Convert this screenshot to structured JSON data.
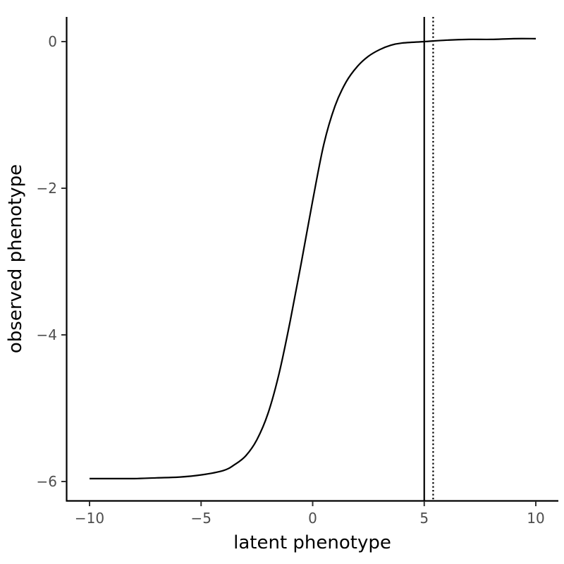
{
  "chart_data": {
    "type": "line",
    "title": "",
    "xlabel": "latent phenotype",
    "ylabel": "observed phenotype",
    "xlim": [
      -11,
      11
    ],
    "ylim": [
      -6.25,
      0.35
    ],
    "xticks": [
      -10,
      -5,
      0,
      5,
      10
    ],
    "xtick_labels": [
      "−10",
      "−5",
      "0",
      "5",
      "10"
    ],
    "yticks": [
      -6,
      -4,
      -2,
      0
    ],
    "ytick_labels": [
      "−6",
      "−4",
      "−2",
      "0"
    ],
    "grid": false,
    "series": [
      {
        "style": "solid",
        "color": "#000000",
        "points": [
          [
            -10,
            -5.96
          ],
          [
            -9,
            -5.96
          ],
          [
            -8,
            -5.96
          ],
          [
            -7,
            -5.95
          ],
          [
            -6,
            -5.94
          ],
          [
            -5,
            -5.91
          ],
          [
            -4,
            -5.85
          ],
          [
            -3.5,
            -5.77
          ],
          [
            -3,
            -5.65
          ],
          [
            -2.5,
            -5.43
          ],
          [
            -2,
            -5.07
          ],
          [
            -1.5,
            -4.52
          ],
          [
            -1,
            -3.8
          ],
          [
            -0.5,
            -3.0
          ],
          [
            0,
            -2.17
          ],
          [
            0.5,
            -1.4
          ],
          [
            1,
            -0.88
          ],
          [
            1.5,
            -0.55
          ],
          [
            2,
            -0.34
          ],
          [
            2.5,
            -0.2
          ],
          [
            3,
            -0.11
          ],
          [
            3.5,
            -0.05
          ],
          [
            4,
            -0.02
          ],
          [
            5,
            0.0
          ],
          [
            6,
            0.02
          ],
          [
            7,
            0.03
          ],
          [
            8,
            0.03
          ],
          [
            9,
            0.04
          ],
          [
            10,
            0.04
          ]
        ]
      }
    ],
    "vlines": [
      {
        "x": 5.0,
        "style": "solid",
        "color": "#000000"
      },
      {
        "x": 5.4,
        "style": "dotted",
        "color": "#000000"
      }
    ]
  }
}
